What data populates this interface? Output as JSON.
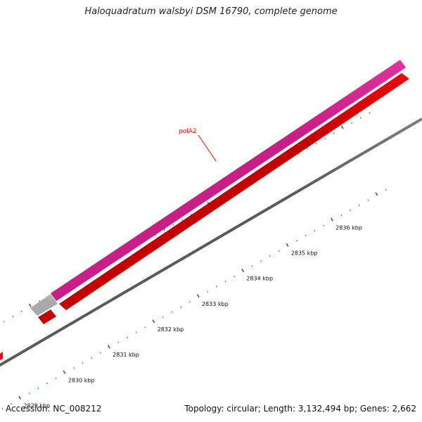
{
  "title": "Haloquadratum walsbyi DSM 16790, complete genome",
  "footer": {
    "accession": "Accession: NC_008212",
    "summary": "Topology: circular; Length: 3,132,494 bp; Genes: 2,662"
  },
  "colors": {
    "backbone": "#808080",
    "cds_forward": "#ee3aa8",
    "cds_reverse": "#ff0000",
    "other_feature": "#c8c8c8",
    "tick_major": "#1a7a1a",
    "tick_minor": "#2e8b2e",
    "label": "#ff0000"
  },
  "scale": {
    "ticks": [
      {
        "label": "2829 kbp"
      },
      {
        "label": "2830 kbp"
      },
      {
        "label": "2831 kbp"
      },
      {
        "label": "2832 kbp"
      },
      {
        "label": "2833 kbp"
      },
      {
        "label": "2834 kbp"
      },
      {
        "label": "2835 kbp"
      },
      {
        "label": "2836 kbp"
      }
    ]
  },
  "features": [
    {
      "name": "polA2",
      "strand": "forward",
      "type": "CDS"
    }
  ]
}
